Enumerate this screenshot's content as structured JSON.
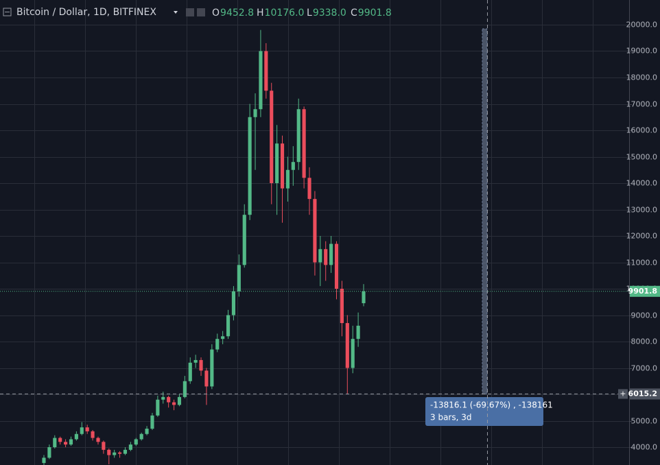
{
  "chart_data": {
    "type": "candlestick",
    "symbol": "Bitcoin / Dollar, 1D, BITFINEX",
    "ohlc_legend": [
      {
        "key": "O",
        "value": "9452.8"
      },
      {
        "key": "H",
        "value": "10176.0"
      },
      {
        "key": "L",
        "value": "9338.0"
      },
      {
        "key": "C",
        "value": "9901.8"
      }
    ],
    "up_color": "#53b987",
    "down_color": "#eb4d5c",
    "open": [
      3400,
      3600,
      4000,
      4350,
      4200,
      4100,
      4300,
      4500,
      4750,
      4600,
      4350,
      4200,
      3900,
      3700,
      3800,
      3750,
      3900,
      4100,
      4300,
      4500,
      4700,
      5200,
      5800,
      5900,
      5700,
      5600,
      5900,
      6500,
      7200,
      7300,
      6900,
      6300,
      7700,
      8100,
      8200,
      9000,
      9900,
      10900,
      12800,
      16500,
      16800,
      19000,
      17500,
      14000,
      15500,
      13800,
      14500,
      14800,
      16800,
      14200,
      13400,
      11000,
      11500,
      10900,
      11700,
      10000,
      8700,
      7000,
      8100,
      9452.8
    ],
    "high": [
      3700,
      4100,
      4450,
      4400,
      4300,
      4400,
      4600,
      4950,
      4850,
      4650,
      4400,
      4250,
      3950,
      3900,
      3850,
      4000,
      4200,
      4350,
      4550,
      4800,
      5300,
      5950,
      6100,
      5950,
      5800,
      6000,
      6700,
      7400,
      7500,
      7400,
      7000,
      7900,
      8300,
      8400,
      9200,
      10100,
      11300,
      13200,
      17000,
      17400,
      19800,
      19300,
      17800,
      16200,
      15800,
      15000,
      15400,
      17200,
      16900,
      14600,
      13700,
      12000,
      11800,
      12000,
      11800,
      10300,
      9000,
      8600,
      9100,
      10176
    ],
    "low": [
      3300,
      3550,
      3950,
      4100,
      4000,
      4050,
      4250,
      4450,
      4500,
      4250,
      4100,
      3750,
      3350,
      3600,
      3600,
      3700,
      3850,
      4050,
      4250,
      4450,
      4650,
      5150,
      5650,
      5500,
      5400,
      5550,
      5850,
      6400,
      7000,
      6700,
      5600,
      6200,
      7600,
      7900,
      8100,
      8800,
      9700,
      10800,
      12600,
      14500,
      16500,
      17200,
      13200,
      12800,
      12500,
      13300,
      13900,
      14500,
      13800,
      12800,
      10500,
      10100,
      10300,
      10600,
      9600,
      8200,
      6000,
      6800,
      7800,
      9338
    ],
    "close": [
      3600,
      4000,
      4350,
      4200,
      4100,
      4300,
      4500,
      4750,
      4600,
      4350,
      4200,
      3900,
      3700,
      3800,
      3750,
      3900,
      4100,
      4300,
      4500,
      4700,
      5200,
      5800,
      5900,
      5700,
      5600,
      5900,
      6500,
      7200,
      7300,
      6900,
      6300,
      7700,
      8100,
      8200,
      9000,
      9900,
      10900,
      12800,
      16500,
      16800,
      19000,
      17500,
      14000,
      15500,
      13800,
      14500,
      14800,
      16800,
      14200,
      13400,
      11000,
      11500,
      10900,
      11700,
      10000,
      8700,
      7000,
      8100,
      8600,
      9901.8
    ],
    "ylim": [
      3325,
      20935
    ],
    "yticks": [
      {
        "value": 4000,
        "label": "4000.0"
      },
      {
        "value": 5000,
        "label": "5000.0"
      },
      {
        "value": 6000,
        "label": "6000.0"
      },
      {
        "value": 7000,
        "label": "7000.0"
      },
      {
        "value": 8000,
        "label": "8000.0"
      },
      {
        "value": 9000,
        "label": "9000.0"
      },
      {
        "value": 10000,
        "label": "10000.0"
      },
      {
        "value": 11000,
        "label": "11000.0"
      },
      {
        "value": 12000,
        "label": "12000.0"
      },
      {
        "value": 13000,
        "label": "13000.0"
      },
      {
        "value": 14000,
        "label": "14000.0"
      },
      {
        "value": 15000,
        "label": "15000.0"
      },
      {
        "value": 16000,
        "label": "16000.0"
      },
      {
        "value": 17000,
        "label": "17000.0"
      },
      {
        "value": 18000,
        "label": "18000.0"
      },
      {
        "value": 19000,
        "label": "19000.0"
      },
      {
        "value": 20000,
        "label": "20000.0"
      }
    ],
    "grid": true,
    "last_price": {
      "value": 9901.8,
      "label": "9901.8"
    },
    "crosshair_price": {
      "value": 6015.2,
      "label": "6015.2"
    },
    "measure": {
      "line1": "-13816.1 (-69.67%) , -138161",
      "line2": "3 bars, 3d"
    }
  }
}
